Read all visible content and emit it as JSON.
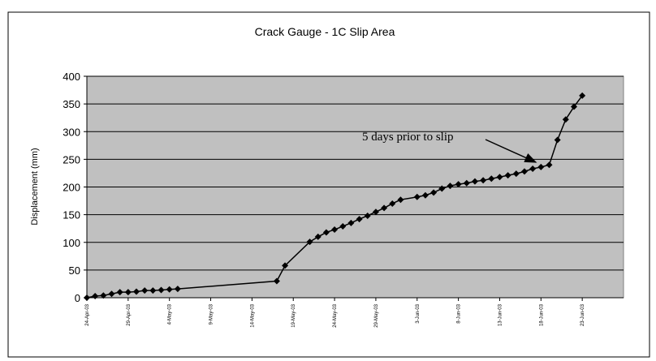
{
  "chart_data": {
    "type": "line",
    "title": "Crack Gauge - 1C Slip Area",
    "y_label": "Displacement (mm)",
    "annotation": "5 days prior to slip",
    "x": [
      "2003-04-24",
      "2003-04-25",
      "2003-04-26",
      "2003-04-27",
      "2003-04-28",
      "2003-04-29",
      "2003-04-30",
      "2003-05-01",
      "2003-05-02",
      "2003-05-03",
      "2003-05-04",
      "2003-05-05",
      "2003-05-17",
      "2003-05-18",
      "2003-05-21",
      "2003-05-22",
      "2003-05-23",
      "2003-05-24",
      "2003-05-25",
      "2003-05-26",
      "2003-05-27",
      "2003-05-28",
      "2003-05-29",
      "2003-05-30",
      "2003-05-31",
      "2003-06-01",
      "2003-06-03",
      "2003-06-04",
      "2003-06-05",
      "2003-06-06",
      "2003-06-07",
      "2003-06-08",
      "2003-06-09",
      "2003-06-10",
      "2003-06-11",
      "2003-06-12",
      "2003-06-13",
      "2003-06-14",
      "2003-06-15",
      "2003-06-16",
      "2003-06-17",
      "2003-06-18",
      "2003-06-19",
      "2003-06-20",
      "2003-06-21",
      "2003-06-22",
      "2003-06-23"
    ],
    "series": [
      {
        "name": "Displacement",
        "color": "#000000",
        "values": [
          0,
          3,
          4,
          7,
          10,
          10,
          11,
          13,
          13,
          14,
          15,
          16,
          30,
          58,
          101,
          110,
          118,
          123,
          129,
          135,
          142,
          148,
          155,
          162,
          170,
          177,
          182,
          185,
          190,
          197,
          202,
          205,
          207,
          210,
          212,
          215,
          218,
          221,
          224,
          228,
          233,
          236,
          240,
          285,
          322,
          345,
          365
        ]
      }
    ],
    "xlim": [
      "2003-04-24",
      "2003-06-28"
    ],
    "xticks": [
      {
        "value": "2003-04-24",
        "label": "24-Apr-03"
      },
      {
        "value": "2003-04-29",
        "label": "29-Apr-03"
      },
      {
        "value": "2003-05-04",
        "label": "4-May-03"
      },
      {
        "value": "2003-05-09",
        "label": "9-May-03"
      },
      {
        "value": "2003-05-14",
        "label": "14-May-03"
      },
      {
        "value": "2003-05-19",
        "label": "19-May-03"
      },
      {
        "value": "2003-05-24",
        "label": "24-May-03"
      },
      {
        "value": "2003-05-29",
        "label": "29-May-03"
      },
      {
        "value": "2003-06-03",
        "label": "3-Jun-03"
      },
      {
        "value": "2003-06-08",
        "label": "8-Jun-03"
      },
      {
        "value": "2003-06-13",
        "label": "13-Jun-03"
      },
      {
        "value": "2003-06-18",
        "label": "18-Jun-03"
      },
      {
        "value": "2003-06-23",
        "label": "23-Jun-03"
      }
    ],
    "ylim": [
      0,
      400
    ],
    "yticks": [
      0,
      50,
      100,
      150,
      200,
      250,
      300,
      350,
      400
    ],
    "grid": true,
    "plot_background": "#c0c0c0"
  }
}
